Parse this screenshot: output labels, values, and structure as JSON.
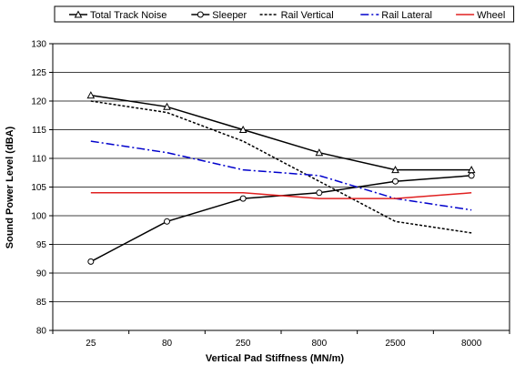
{
  "chart_data": {
    "type": "line",
    "title": "",
    "xlabel": "Vertical Pad Stiffness (MN/m)",
    "ylabel": "Sound Power Level (dBA)",
    "categories": [
      "25",
      "80",
      "250",
      "800",
      "2500",
      "8000"
    ],
    "ylim": [
      80,
      130
    ],
    "ytick_step": 5,
    "grid": true,
    "legend_position": "top",
    "series": [
      {
        "name": "Total Track Noise",
        "values": [
          121,
          119,
          115,
          111,
          108,
          108
        ],
        "color": "#000000",
        "line_style": "solid",
        "marker": "triangle"
      },
      {
        "name": "Sleeper",
        "values": [
          92,
          99,
          103,
          104,
          106,
          107
        ],
        "color": "#000000",
        "line_style": "solid",
        "marker": "circle"
      },
      {
        "name": "Rail Vertical",
        "values": [
          120,
          118,
          113,
          106,
          99,
          97
        ],
        "color": "#000000",
        "line_style": "dotted",
        "marker": "none"
      },
      {
        "name": "Rail Lateral",
        "values": [
          113,
          111,
          108,
          107,
          103,
          101
        ],
        "color": "#0000cc",
        "line_style": "dashdot",
        "marker": "none"
      },
      {
        "name": "Wheel",
        "values": [
          104,
          104,
          104,
          103,
          103,
          104
        ],
        "color": "#e02020",
        "line_style": "solid",
        "marker": "none"
      }
    ]
  }
}
